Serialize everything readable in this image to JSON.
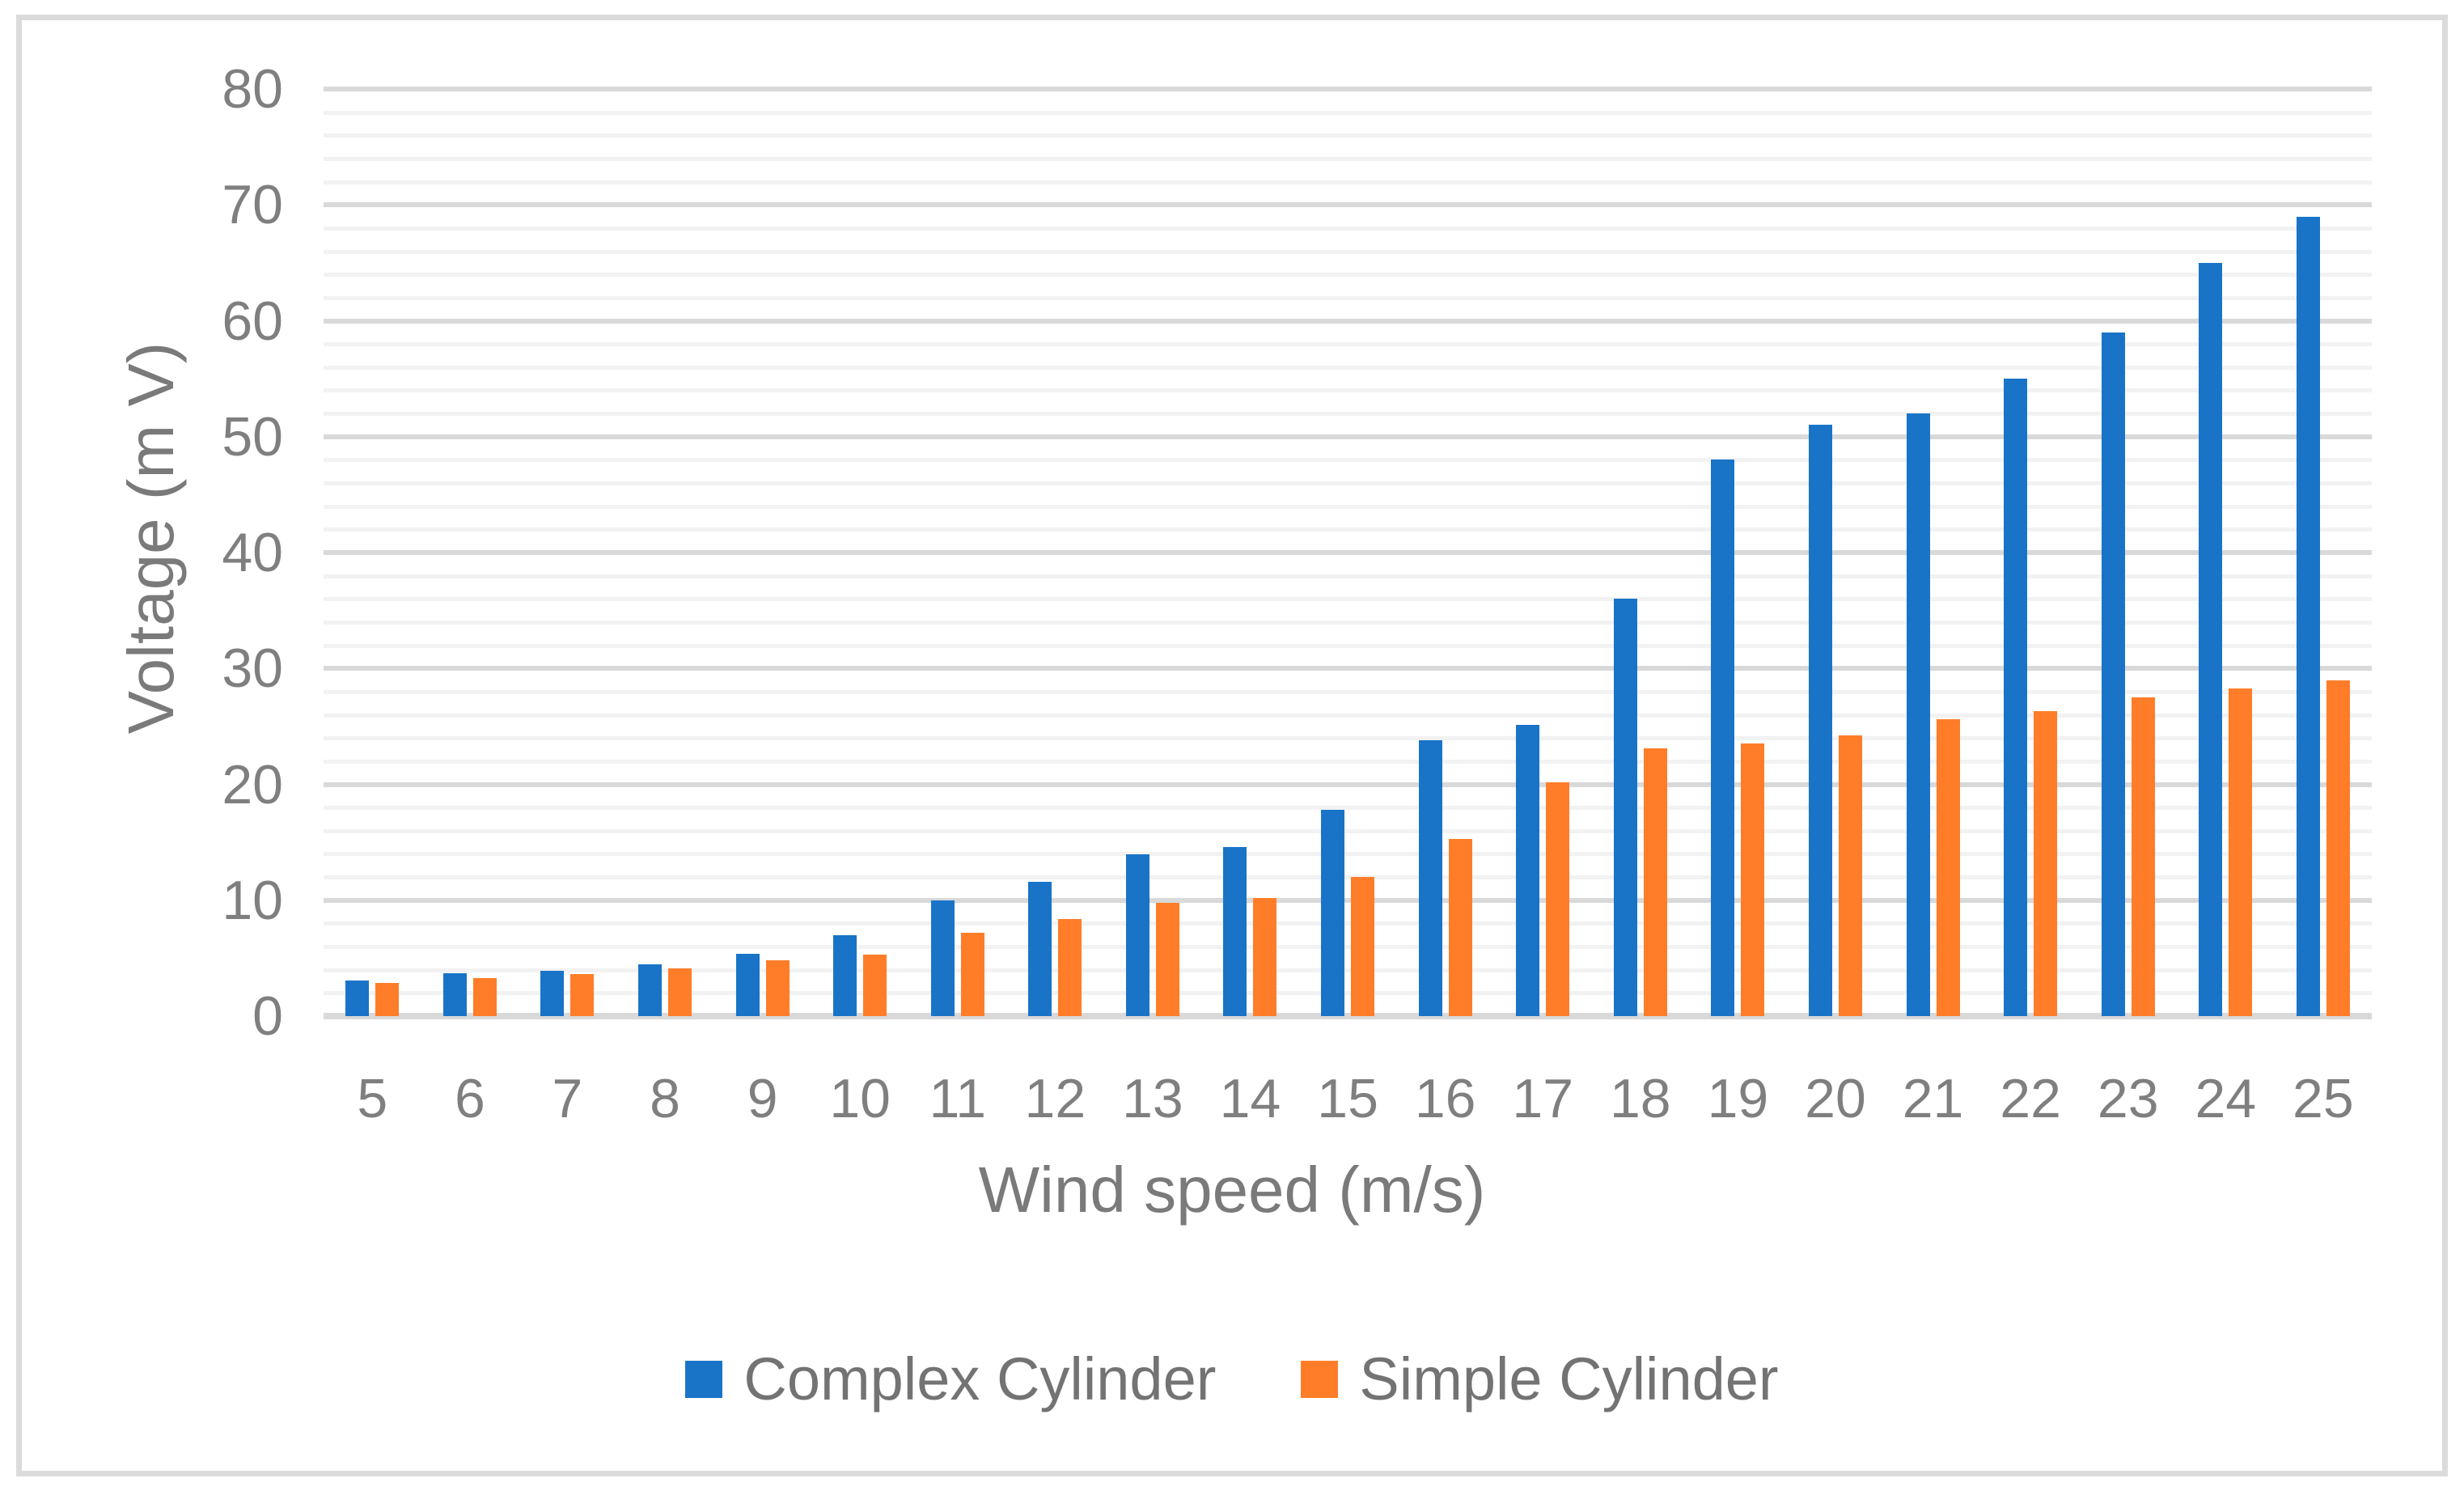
{
  "figure": {
    "background": "#FFFFFF",
    "border_color": "#DBDBDB"
  },
  "colors": {
    "gridline_major": "#D9D9D9",
    "gridline_minor": "#F2F2F2",
    "axis_line": "#D9D9D9",
    "tick_text": "#7F7F7F",
    "title_text": "#7A7A7A",
    "legend_text": "#737373"
  },
  "chart_data": {
    "type": "bar",
    "title": "",
    "xlabel": "Wind speed (m/s)",
    "ylabel": "Voltage (m V)",
    "ylim": [
      0,
      80
    ],
    "y_major_step": 10,
    "y_minor_step": 2,
    "grid": true,
    "legend_position": "bottom",
    "y_tick_labels": [
      "0",
      "10",
      "20",
      "30",
      "40",
      "50",
      "60",
      "70",
      "80"
    ],
    "categories": [
      "5",
      "6",
      "7",
      "8",
      "9",
      "10",
      "11",
      "12",
      "13",
      "14",
      "15",
      "16",
      "17",
      "18",
      "19",
      "20",
      "21",
      "22",
      "23",
      "24",
      "25"
    ],
    "series": [
      {
        "name": "Complex Cylinder",
        "color": "#1974C8",
        "values": [
          3.1,
          3.7,
          3.9,
          4.5,
          5.4,
          7.0,
          10.0,
          11.6,
          14.0,
          14.6,
          17.8,
          23.8,
          25.1,
          36.0,
          48.0,
          51.0,
          52.0,
          55.0,
          59.0,
          65.0,
          69.0
        ]
      },
      {
        "name": "Simple Cylinder",
        "color": "#FF7D29",
        "values": [
          2.9,
          3.3,
          3.6,
          4.1,
          4.8,
          5.3,
          7.2,
          8.4,
          9.8,
          10.2,
          12.0,
          15.3,
          20.2,
          23.1,
          23.5,
          24.2,
          25.6,
          26.3,
          27.5,
          28.3,
          29.0
        ]
      }
    ]
  }
}
